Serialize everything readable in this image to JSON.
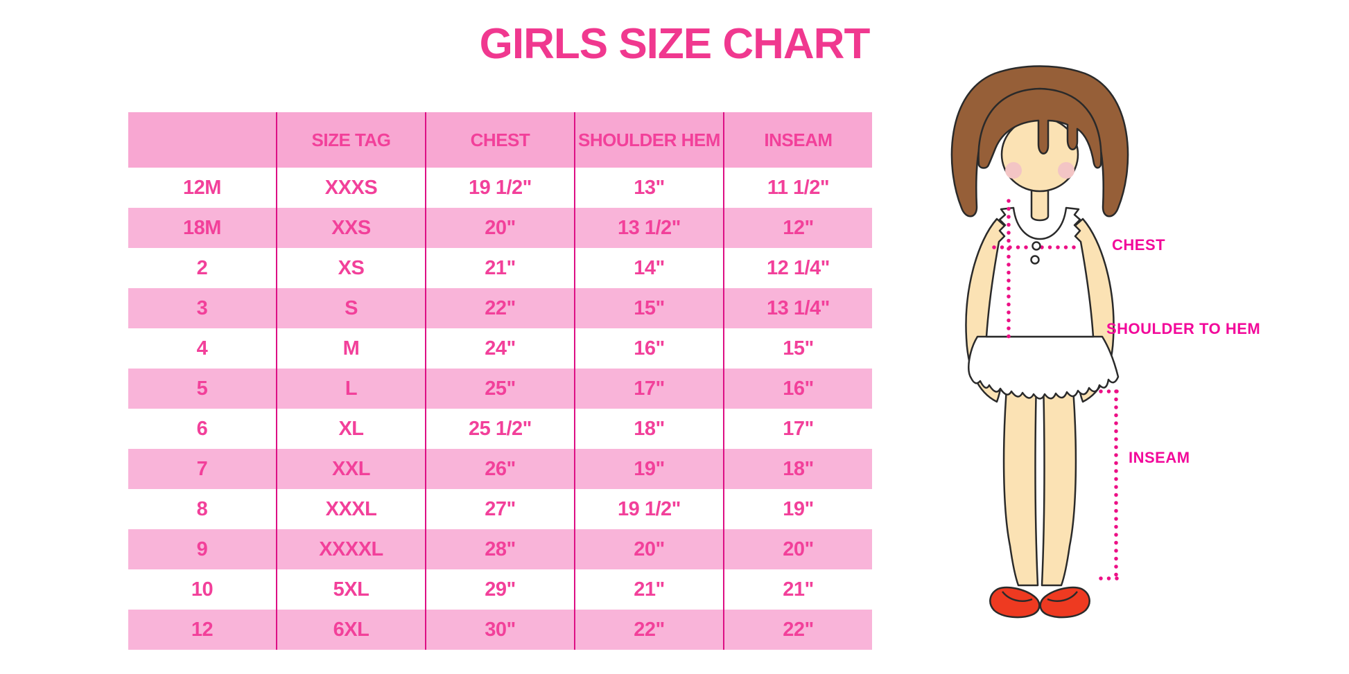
{
  "chart_data": {
    "type": "table",
    "title": "GIRLS SIZE CHART",
    "columns": [
      "",
      "SIZE TAG",
      "CHEST",
      "SHOULDER HEM",
      "INSEAM"
    ],
    "rows": [
      [
        "12M",
        "XXXS",
        "19 1/2\"",
        "13\"",
        "11 1/2\""
      ],
      [
        "18M",
        "XXS",
        "20\"",
        "13 1/2\"",
        "12\""
      ],
      [
        "2",
        "XS",
        "21\"",
        "14\"",
        "12 1/4\""
      ],
      [
        "3",
        "S",
        "22\"",
        "15\"",
        "13 1/4\""
      ],
      [
        "4",
        "M",
        "24\"",
        "16\"",
        "15\""
      ],
      [
        "5",
        "L",
        "25\"",
        "17\"",
        "16\""
      ],
      [
        "6",
        "XL",
        "25 1/2\"",
        "18\"",
        "17\""
      ],
      [
        "7",
        "XXL",
        "26\"",
        "19\"",
        "18\""
      ],
      [
        "8",
        "XXXL",
        "27\"",
        "19 1/2\"",
        "19\""
      ],
      [
        "9",
        "XXXXL",
        "28\"",
        "20\"",
        "20\""
      ],
      [
        "10",
        "5XL",
        "29\"",
        "21\"",
        "21\""
      ],
      [
        "12",
        "6XL",
        "30\"",
        "22\"",
        "22\""
      ]
    ],
    "annotations": [
      "CHEST",
      "SHOULDER TO HEM",
      "INSEAM"
    ],
    "layout": {
      "row_striping": "white/pink alternating",
      "header_fill": "pink",
      "grid": "vertical column dividers only"
    }
  },
  "colors": {
    "title-pink": "#F0388F",
    "header-bg": "#F8A7D2",
    "row-pink": "#F9B4D9",
    "divider": "#DD0F84",
    "table-text": "#F2409A",
    "label-magenta": "#F2089A",
    "dotted-line": "#EC1086",
    "hair-brown": "#965F38",
    "skin": "#FBE2B4",
    "blush": "#F3C5C5",
    "shoe-red": "#EE3A21",
    "outline": "#2A2A2A"
  }
}
